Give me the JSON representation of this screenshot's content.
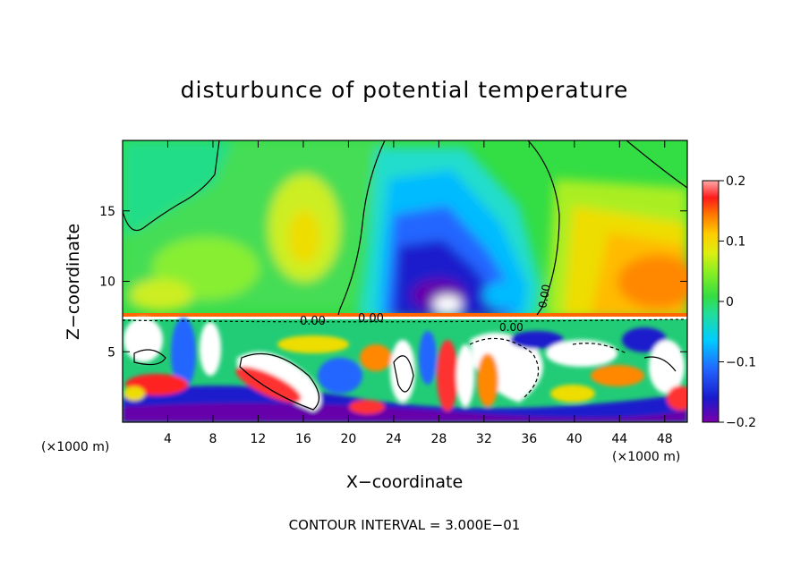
{
  "chart_data": {
    "type": "heatmap",
    "title": "disturbunce of potential temperature",
    "xlabel": "X−coordinate",
    "ylabel": "Z−coordinate",
    "x_unit": "(×1000 m)",
    "y_unit": "(×1000 m)",
    "x_ticks": [
      "4",
      "8",
      "12",
      "16",
      "20",
      "24",
      "28",
      "32",
      "36",
      "40",
      "44",
      "48"
    ],
    "y_ticks": [
      "5",
      "10",
      "15"
    ],
    "xlim": [
      0,
      50
    ],
    "ylim": [
      0,
      20
    ],
    "colorbar": {
      "ticks": [
        "0.2",
        "0.1",
        "0",
        "−0.1",
        "−0.2"
      ],
      "range": [
        -0.2,
        0.2
      ]
    },
    "contour_labels": [
      "0.00",
      "0.00",
      "0.00",
      "0.00"
    ],
    "footer": "CONTOUR INTERVAL = 3.000E−01",
    "colors": {
      "background_field": "#33dd44",
      "warm": "#ff8800",
      "cold": "#1a1acc",
      "contour": "#000000"
    }
  }
}
